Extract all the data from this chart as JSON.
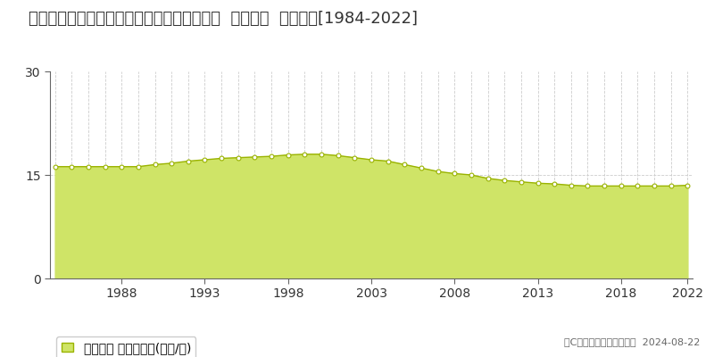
{
  "title": "大分県別府市大字鶴見字タタラ１８７８番７  地価公示  地価推移[1984-2022]",
  "years": [
    1984,
    1985,
    1986,
    1987,
    1988,
    1989,
    1990,
    1991,
    1992,
    1993,
    1994,
    1995,
    1996,
    1997,
    1998,
    1999,
    2000,
    2001,
    2002,
    2003,
    2004,
    2005,
    2006,
    2007,
    2008,
    2009,
    2010,
    2011,
    2012,
    2013,
    2014,
    2015,
    2016,
    2017,
    2018,
    2019,
    2020,
    2021,
    2022
  ],
  "values": [
    16.2,
    16.2,
    16.2,
    16.2,
    16.2,
    16.2,
    16.5,
    16.7,
    17.0,
    17.2,
    17.4,
    17.5,
    17.6,
    17.7,
    17.9,
    18.0,
    18.0,
    17.8,
    17.5,
    17.2,
    17.0,
    16.5,
    16.0,
    15.5,
    15.2,
    15.0,
    14.5,
    14.2,
    14.0,
    13.8,
    13.7,
    13.5,
    13.4,
    13.4,
    13.4,
    13.4,
    13.4,
    13.4,
    13.5
  ],
  "fill_color": "#cfe467",
  "line_color": "#9ab300",
  "marker_facecolor": "#ffffff",
  "marker_edgecolor": "#9ab300",
  "bg_color": "#ffffff",
  "grid_color": "#cccccc",
  "ylim": [
    0,
    30
  ],
  "yticks": [
    0,
    15,
    30
  ],
  "xtick_years": [
    1988,
    1993,
    1998,
    2003,
    2008,
    2013,
    2018,
    2022
  ],
  "legend_label": "地価公示 平均嵪単価(万円/嵪)",
  "copyright_text": "（C）土地価格ドットコム  2024-08-22",
  "title_fontsize": 13,
  "tick_fontsize": 10,
  "legend_fontsize": 10,
  "copyright_fontsize": 8
}
